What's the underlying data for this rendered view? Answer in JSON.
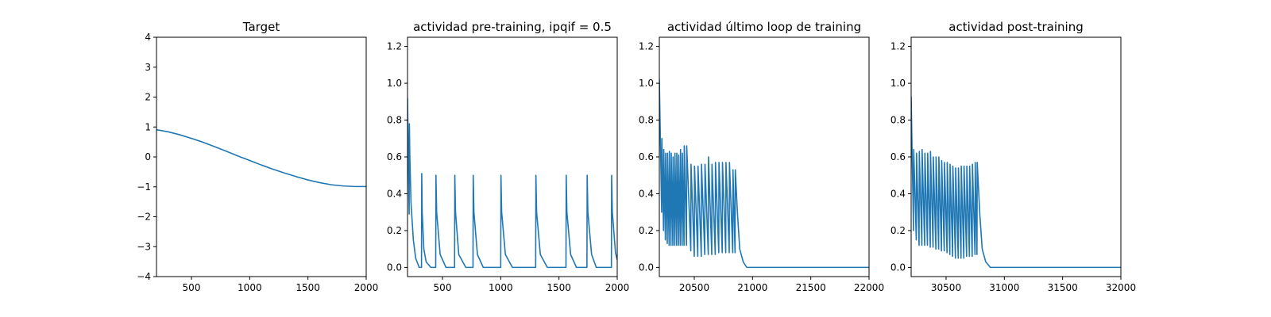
{
  "figure": {
    "background": "#ffffff",
    "line_color": "#1f77b4"
  },
  "chart_data": [
    {
      "type": "line",
      "title": "Target",
      "xlim": [
        200,
        2000
      ],
      "ylim": [
        -4,
        4
      ],
      "xticks": [
        500,
        1000,
        1500,
        2000
      ],
      "xtick_labels": [
        "500",
        "1000",
        "1500",
        "2000"
      ],
      "yticks": [
        -4,
        -3,
        -2,
        -1,
        0,
        1,
        2,
        3,
        4
      ],
      "ytick_labels": [
        "−4",
        "−3",
        "−2",
        "−1",
        "0",
        "1",
        "2",
        "3",
        "4"
      ],
      "series": [
        {
          "x": [
            200,
            300,
            400,
            500,
            600,
            700,
            800,
            900,
            1000,
            1100,
            1200,
            1300,
            1400,
            1500,
            1600,
            1700,
            1800,
            1900,
            2000
          ],
          "y": [
            0.91,
            0.84,
            0.74,
            0.62,
            0.49,
            0.34,
            0.19,
            0.03,
            -0.12,
            -0.27,
            -0.41,
            -0.54,
            -0.66,
            -0.77,
            -0.86,
            -0.93,
            -0.97,
            -0.99,
            -0.99
          ]
        }
      ]
    },
    {
      "type": "line",
      "title": "actividad pre-training, ipqif = 0.5",
      "xlim": [
        200,
        2000
      ],
      "ylim": [
        -0.05,
        1.25
      ],
      "xticks": [
        500,
        1000,
        1500,
        2000
      ],
      "xtick_labels": [
        "500",
        "1000",
        "1500",
        "2000"
      ],
      "yticks": [
        0,
        0.2,
        0.4,
        0.6,
        0.8,
        1.0,
        1.2
      ],
      "ytick_labels": [
        "0.0",
        "0.2",
        "0.4",
        "0.6",
        "0.8",
        "1.0",
        "1.2"
      ],
      "series": [
        {
          "x": [
            200,
            214,
            216,
            220,
            230,
            250,
            270,
            300,
            320,
            322,
            326,
            340,
            360,
            400,
            442,
            444,
            450,
            480,
            530,
            604,
            606,
            612,
            640,
            700,
            762,
            764,
            770,
            800,
            850,
            1000,
            1002,
            1008,
            1040,
            1100,
            1300,
            1302,
            1308,
            1340,
            1400,
            1560,
            1562,
            1568,
            1600,
            1650,
            1740,
            1742,
            1748,
            1780,
            1820,
            1950,
            1952,
            1958,
            1985,
            2000
          ],
          "y": [
            0.92,
            0.29,
            0.78,
            0.6,
            0.35,
            0.15,
            0.05,
            0.0,
            0.0,
            0.51,
            0.3,
            0.1,
            0.03,
            0.0,
            0.0,
            0.5,
            0.3,
            0.07,
            0.0,
            0.0,
            0.5,
            0.3,
            0.07,
            0.0,
            0.0,
            0.5,
            0.3,
            0.07,
            0.0,
            0.0,
            0.5,
            0.3,
            0.07,
            0.0,
            0.0,
            0.5,
            0.3,
            0.07,
            0.0,
            0.0,
            0.5,
            0.3,
            0.07,
            0.0,
            0.0,
            0.5,
            0.3,
            0.07,
            0.0,
            0.0,
            0.5,
            0.3,
            0.08,
            0.04
          ]
        }
      ]
    },
    {
      "type": "line",
      "title": "actividad último loop de training",
      "xlim": [
        20200,
        22000
      ],
      "ylim": [
        -0.05,
        1.25
      ],
      "xticks": [
        20500,
        21000,
        21500,
        22000
      ],
      "xtick_labels": [
        "20500",
        "21000",
        "21500",
        "22000"
      ],
      "yticks": [
        0,
        0.2,
        0.4,
        0.6,
        0.8,
        1.0,
        1.2
      ],
      "ytick_labels": [
        "0.0",
        "0.2",
        "0.4",
        "0.6",
        "0.8",
        "1.0",
        "1.2"
      ],
      "series": [
        {
          "x": [
            20200,
            20220,
            20222,
            20236,
            20238,
            20252,
            20254,
            20268,
            20270,
            20284,
            20286,
            20300,
            20302,
            20316,
            20318,
            20332,
            20334,
            20348,
            20350,
            20364,
            20366,
            20380,
            20382,
            20396,
            20398,
            20412,
            20414,
            20433,
            20435,
            20470,
            20472,
            20500,
            20502,
            20530,
            20532,
            20560,
            20562,
            20590,
            20592,
            20620,
            20622,
            20650,
            20652,
            20680,
            20682,
            20710,
            20712,
            20740,
            20742,
            20770,
            20772,
            20800,
            20802,
            20830,
            20832,
            20850,
            20852,
            20870,
            20890,
            20920,
            20950,
            21000,
            22000
          ],
          "y": [
            1.02,
            0.3,
            0.7,
            0.2,
            0.64,
            0.15,
            0.62,
            0.13,
            0.62,
            0.12,
            0.63,
            0.12,
            0.62,
            0.12,
            0.6,
            0.12,
            0.62,
            0.12,
            0.62,
            0.12,
            0.61,
            0.12,
            0.64,
            0.12,
            0.62,
            0.12,
            0.66,
            0.12,
            0.66,
            0.09,
            0.56,
            0.06,
            0.55,
            0.06,
            0.55,
            0.06,
            0.56,
            0.07,
            0.56,
            0.07,
            0.6,
            0.07,
            0.56,
            0.07,
            0.57,
            0.08,
            0.57,
            0.08,
            0.57,
            0.08,
            0.57,
            0.08,
            0.57,
            0.08,
            0.53,
            0.08,
            0.53,
            0.3,
            0.1,
            0.03,
            0.0,
            0.0,
            0.0
          ]
        }
      ]
    },
    {
      "type": "line",
      "title": "actividad post-training",
      "xlim": [
        30200,
        32000
      ],
      "ylim": [
        -0.05,
        1.25
      ],
      "xticks": [
        30500,
        31000,
        31500,
        32000
      ],
      "xtick_labels": [
        "30500",
        "31000",
        "31500",
        "32000"
      ],
      "yticks": [
        0,
        0.2,
        0.4,
        0.6,
        0.8,
        1.0,
        1.2
      ],
      "ytick_labels": [
        "0.0",
        "0.2",
        "0.4",
        "0.6",
        "0.8",
        "1.0",
        "1.2"
      ],
      "series": [
        {
          "x": [
            30200,
            30220,
            30222,
            30244,
            30246,
            30268,
            30270,
            30292,
            30294,
            30316,
            30318,
            30340,
            30342,
            30364,
            30366,
            30388,
            30390,
            30412,
            30414,
            30436,
            30438,
            30460,
            30462,
            30484,
            30486,
            30508,
            30510,
            30532,
            30534,
            30556,
            30558,
            30580,
            30582,
            30604,
            30606,
            30628,
            30630,
            30652,
            30654,
            30676,
            30678,
            30700,
            30702,
            30724,
            30726,
            30748,
            30750,
            30765,
            30767,
            30790,
            30810,
            30840,
            30880,
            30950,
            32000
          ],
          "y": [
            0.93,
            0.2,
            0.64,
            0.15,
            0.62,
            0.12,
            0.63,
            0.12,
            0.64,
            0.12,
            0.62,
            0.12,
            0.62,
            0.11,
            0.63,
            0.11,
            0.6,
            0.1,
            0.6,
            0.1,
            0.6,
            0.09,
            0.58,
            0.09,
            0.57,
            0.08,
            0.57,
            0.07,
            0.56,
            0.06,
            0.55,
            0.05,
            0.54,
            0.05,
            0.54,
            0.05,
            0.55,
            0.05,
            0.55,
            0.06,
            0.55,
            0.06,
            0.55,
            0.06,
            0.56,
            0.07,
            0.57,
            0.07,
            0.57,
            0.28,
            0.1,
            0.03,
            0.0,
            0.0,
            0.0
          ]
        }
      ]
    }
  ]
}
